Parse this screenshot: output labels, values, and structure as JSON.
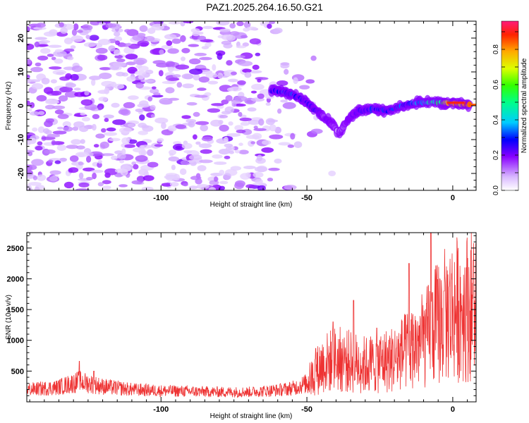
{
  "title": "PAZ1.2025.264.16.50.G21",
  "spectrogram": {
    "type": "heatmap",
    "xlabel": "Height of straight line (km)",
    "ylabel": "Frequency (Hz)",
    "xlim": [
      -146,
      8
    ],
    "ylim": [
      -25,
      25
    ],
    "xticks": [
      -100,
      -50,
      0
    ],
    "yticks": [
      -20,
      -10,
      0,
      10,
      20
    ],
    "colorbar": {
      "label": "Normalized spectral amplitude",
      "range": [
        0,
        0.96
      ],
      "ticks": [
        0,
        0.2,
        0.4,
        0.6,
        0.8
      ]
    },
    "signal_track": [
      {
        "x": -62,
        "f": 4.5,
        "a": 0.3
      },
      {
        "x": -58,
        "f": 4,
        "a": 0.35
      },
      {
        "x": -54,
        "f": 3,
        "a": 0.32
      },
      {
        "x": -50,
        "f": 1,
        "a": 0.3
      },
      {
        "x": -46,
        "f": -2,
        "a": 0.25
      },
      {
        "x": -42,
        "f": -5,
        "a": 0.2
      },
      {
        "x": -39,
        "f": -8,
        "a": 0.12
      },
      {
        "x": -36,
        "f": -4,
        "a": 0.2
      },
      {
        "x": -32,
        "f": -1.5,
        "a": 0.3
      },
      {
        "x": -27,
        "f": -1,
        "a": 0.35
      },
      {
        "x": -22,
        "f": -1.5,
        "a": 0.3
      },
      {
        "x": -17,
        "f": 0,
        "a": 0.35
      },
      {
        "x": -12,
        "f": 1,
        "a": 0.4
      },
      {
        "x": -6,
        "f": 1,
        "a": 0.55
      },
      {
        "x": 0,
        "f": 0.8,
        "a": 0.85
      },
      {
        "x": 6,
        "f": 0.2,
        "a": 0.9
      }
    ]
  },
  "snr": {
    "type": "line",
    "xlabel": "Height of straight line (km)",
    "ylabel": "SNR (10 * v/v)",
    "xlim": [
      -146,
      8
    ],
    "ylim": [
      0,
      2750
    ],
    "xticks": [
      -100,
      -50,
      0
    ],
    "yticks": [
      500,
      1000,
      1500,
      2000,
      2500
    ],
    "line_color": "#ee3333",
    "trend": [
      {
        "x": -146,
        "y": 200
      },
      {
        "x": -136,
        "y": 230
      },
      {
        "x": -128,
        "y": 330
      },
      {
        "x": -120,
        "y": 250
      },
      {
        "x": -110,
        "y": 200
      },
      {
        "x": -100,
        "y": 180
      },
      {
        "x": -90,
        "y": 170
      },
      {
        "x": -80,
        "y": 160
      },
      {
        "x": -70,
        "y": 160
      },
      {
        "x": -60,
        "y": 190
      },
      {
        "x": -55,
        "y": 220
      },
      {
        "x": -50,
        "y": 300
      },
      {
        "x": -45,
        "y": 600
      },
      {
        "x": -40,
        "y": 700
      },
      {
        "x": -35,
        "y": 650
      },
      {
        "x": -30,
        "y": 600
      },
      {
        "x": -25,
        "y": 650
      },
      {
        "x": -20,
        "y": 700
      },
      {
        "x": -15,
        "y": 850
      },
      {
        "x": -10,
        "y": 1000
      },
      {
        "x": -5,
        "y": 1300
      },
      {
        "x": 0,
        "y": 1500
      },
      {
        "x": 5,
        "y": 1550
      },
      {
        "x": 8,
        "y": 1600
      }
    ],
    "peaks": [
      {
        "x": -128,
        "y": 660
      },
      {
        "x": -123,
        "y": 500
      },
      {
        "x": -47,
        "y": 870
      },
      {
        "x": -41,
        "y": 1300
      },
      {
        "x": -34,
        "y": 1650
      },
      {
        "x": -26,
        "y": 1200
      },
      {
        "x": -15,
        "y": 2250
      },
      {
        "x": -9,
        "y": 1600
      },
      {
        "x": -7.5,
        "y": 2750
      },
      {
        "x": -3,
        "y": 1800
      },
      {
        "x": 7,
        "y": 2300
      }
    ]
  }
}
